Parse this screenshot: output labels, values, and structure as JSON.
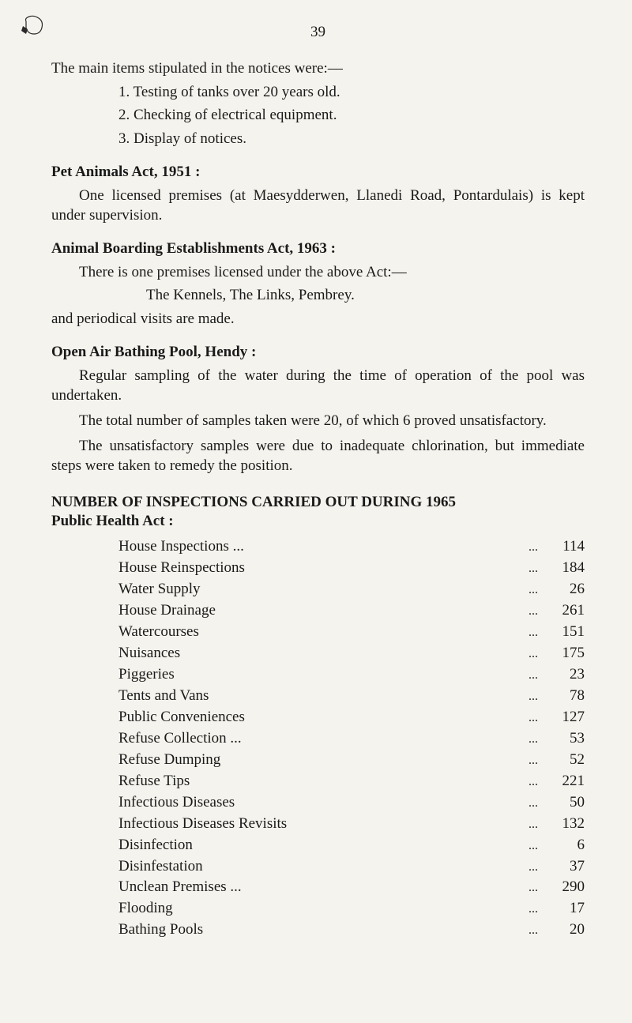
{
  "page_number": "39",
  "intro": "The main items stipulated in the notices were:—",
  "items": [
    "1. Testing of tanks over 20 years old.",
    "2. Checking of electrical equipment.",
    "3. Display of notices."
  ],
  "pet_animals": {
    "heading": "Pet Animals Act, 1951 :",
    "body": "One licensed premises (at Maesydderwen, Llanedi Road, Pontardulais) is kept under supervision."
  },
  "boarding": {
    "heading": "Animal Boarding Establishments Act, 1963 :",
    "line1": "There is one premises licensed under the above Act:—",
    "line2": "The Kennels, The Links, Pembrey.",
    "line3": "and periodical visits are made."
  },
  "bathing": {
    "heading": "Open Air Bathing Pool, Hendy :",
    "p1": "Regular sampling of the water during the time of operation of the pool was undertaken.",
    "p2": "The total number of samples taken were 20, of which 6 proved unsatisfactory.",
    "p3": "The unsatisfactory samples were due to inadequate chlorination, but immediate steps were taken to remedy the position."
  },
  "inspections": {
    "heading": "NUMBER OF INSPECTIONS CARRIED OUT DURING 1965",
    "subheading": "Public Health Act :",
    "rows": [
      {
        "label": "House Inspections ...",
        "value": "114"
      },
      {
        "label": "House Reinspections",
        "value": "184"
      },
      {
        "label": "Water Supply",
        "value": "26"
      },
      {
        "label": "House Drainage",
        "value": "261"
      },
      {
        "label": "Watercourses",
        "value": "151"
      },
      {
        "label": "Nuisances",
        "value": "175"
      },
      {
        "label": "Piggeries",
        "value": "23"
      },
      {
        "label": "Tents and Vans",
        "value": "78"
      },
      {
        "label": "Public Conveniences",
        "value": "127"
      },
      {
        "label": "Refuse Collection ...",
        "value": "53"
      },
      {
        "label": "Refuse Dumping",
        "value": "52"
      },
      {
        "label": "Refuse Tips",
        "value": "221"
      },
      {
        "label": "Infectious Diseases",
        "value": "50"
      },
      {
        "label": "Infectious Diseases Revisits",
        "value": "132"
      },
      {
        "label": "Disinfection",
        "value": "6"
      },
      {
        "label": "Disinfestation",
        "value": "37"
      },
      {
        "label": "Unclean Premises ...",
        "value": "290"
      },
      {
        "label": "Flooding",
        "value": "17"
      },
      {
        "label": "Bathing Pools",
        "value": "20"
      }
    ]
  }
}
